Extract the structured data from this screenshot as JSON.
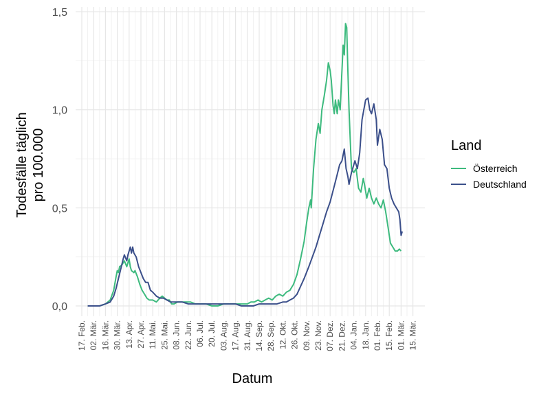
{
  "chart_data": {
    "type": "line",
    "xlabel": "Datum",
    "ylabel_lines": [
      "Todesfälle täglich",
      "pro 100.000"
    ],
    "y_ticks": [
      {
        "value": 0.0,
        "label": "0,0"
      },
      {
        "value": 0.5,
        "label": "0,5"
      },
      {
        "value": 1.0,
        "label": "1,0"
      },
      {
        "value": 1.5,
        "label": "1,5"
      }
    ],
    "x_ticks": [
      "17. Feb.",
      "02. Mär.",
      "16. Mär.",
      "30. Mär.",
      "13. Apr.",
      "27. Apr.",
      "11. Mai.",
      "25. Mai.",
      "08. Jun.",
      "22. Jun.",
      "06. Jul.",
      "20. Jul.",
      "03. Aug.",
      "17. Aug.",
      "31. Aug.",
      "14. Sep.",
      "28. Sep.",
      "12. Okt.",
      "26. Okt.",
      "09. Nov.",
      "23. Nov.",
      "07. Dez.",
      "21. Dez.",
      "04. Jan.",
      "18. Jan.",
      "01. Feb.",
      "15. Feb.",
      "01. Mär.",
      "15. Mär."
    ],
    "x_range_weeks": [
      0,
      28
    ],
    "ylim": [
      -0.05,
      1.5
    ],
    "grid": true,
    "legend": {
      "title": "Land",
      "position": "right"
    },
    "series": [
      {
        "name": "Österreich",
        "color": "#3dba7e",
        "points": [
          [
            0.5,
            0
          ],
          [
            1.5,
            0
          ],
          [
            2.0,
            0.01
          ],
          [
            2.4,
            0.03
          ],
          [
            2.7,
            0.08
          ],
          [
            2.9,
            0.15
          ],
          [
            3.0,
            0.18
          ],
          [
            3.1,
            0.17
          ],
          [
            3.2,
            0.2
          ],
          [
            3.4,
            0.21
          ],
          [
            3.6,
            0.23
          ],
          [
            3.8,
            0.2
          ],
          [
            3.9,
            0.22
          ],
          [
            4.0,
            0.24
          ],
          [
            4.1,
            0.2
          ],
          [
            4.2,
            0.18
          ],
          [
            4.4,
            0.17
          ],
          [
            4.5,
            0.18
          ],
          [
            4.7,
            0.15
          ],
          [
            4.9,
            0.11
          ],
          [
            5.1,
            0.08
          ],
          [
            5.3,
            0.06
          ],
          [
            5.5,
            0.04
          ],
          [
            5.7,
            0.03
          ],
          [
            6.0,
            0.03
          ],
          [
            6.3,
            0.02
          ],
          [
            6.6,
            0.04
          ],
          [
            6.8,
            0.05
          ],
          [
            7.0,
            0.04
          ],
          [
            7.2,
            0.03
          ],
          [
            7.4,
            0.03
          ],
          [
            7.6,
            0.01
          ],
          [
            7.8,
            0.01
          ],
          [
            8.1,
            0.02
          ],
          [
            8.4,
            0.02
          ],
          [
            8.8,
            0.02
          ],
          [
            9.2,
            0.02
          ],
          [
            9.6,
            0.01
          ],
          [
            10.0,
            0.01
          ],
          [
            10.5,
            0.01
          ],
          [
            11.0,
            0
          ],
          [
            11.5,
            0
          ],
          [
            12.0,
            0.01
          ],
          [
            12.5,
            0.01
          ],
          [
            13.0,
            0.01
          ],
          [
            13.5,
            0.01
          ],
          [
            14.0,
            0.01
          ],
          [
            14.3,
            0.02
          ],
          [
            14.6,
            0.02
          ],
          [
            14.9,
            0.03
          ],
          [
            15.2,
            0.02
          ],
          [
            15.5,
            0.03
          ],
          [
            15.8,
            0.04
          ],
          [
            16.1,
            0.03
          ],
          [
            16.4,
            0.05
          ],
          [
            16.7,
            0.06
          ],
          [
            17.0,
            0.05
          ],
          [
            17.3,
            0.07
          ],
          [
            17.6,
            0.08
          ],
          [
            17.9,
            0.11
          ],
          [
            18.2,
            0.16
          ],
          [
            18.5,
            0.24
          ],
          [
            18.8,
            0.33
          ],
          [
            19.0,
            0.42
          ],
          [
            19.2,
            0.5
          ],
          [
            19.35,
            0.54
          ],
          [
            19.4,
            0.5
          ],
          [
            19.6,
            0.7
          ],
          [
            19.8,
            0.85
          ],
          [
            20.0,
            0.93
          ],
          [
            20.15,
            0.88
          ],
          [
            20.3,
            1.0
          ],
          [
            20.5,
            1.07
          ],
          [
            20.7,
            1.15
          ],
          [
            20.85,
            1.24
          ],
          [
            21.0,
            1.2
          ],
          [
            21.1,
            1.15
          ],
          [
            21.25,
            1.02
          ],
          [
            21.35,
            0.98
          ],
          [
            21.45,
            1.05
          ],
          [
            21.6,
            0.98
          ],
          [
            21.7,
            1.05
          ],
          [
            21.85,
            1.0
          ],
          [
            22.0,
            1.2
          ],
          [
            22.1,
            1.33
          ],
          [
            22.2,
            1.28
          ],
          [
            22.3,
            1.44
          ],
          [
            22.4,
            1.42
          ],
          [
            22.5,
            1.2
          ],
          [
            22.6,
            1.0
          ],
          [
            22.7,
            0.85
          ],
          [
            22.8,
            0.7
          ],
          [
            23.0,
            0.68
          ],
          [
            23.2,
            0.7
          ],
          [
            23.4,
            0.6
          ],
          [
            23.6,
            0.58
          ],
          [
            23.8,
            0.65
          ],
          [
            23.9,
            0.62
          ],
          [
            24.1,
            0.55
          ],
          [
            24.3,
            0.6
          ],
          [
            24.5,
            0.55
          ],
          [
            24.7,
            0.52
          ],
          [
            24.9,
            0.55
          ],
          [
            25.1,
            0.52
          ],
          [
            25.3,
            0.5
          ],
          [
            25.5,
            0.54
          ],
          [
            25.7,
            0.48
          ],
          [
            25.9,
            0.4
          ],
          [
            26.1,
            0.32
          ],
          [
            26.3,
            0.3
          ],
          [
            26.5,
            0.28
          ],
          [
            26.7,
            0.28
          ],
          [
            26.85,
            0.29
          ],
          [
            27.0,
            0.28
          ]
        ]
      },
      {
        "name": "Deutschland",
        "color": "#3b4f8a",
        "points": [
          [
            0.5,
            0
          ],
          [
            1.5,
            0
          ],
          [
            2.0,
            0.01
          ],
          [
            2.4,
            0.02
          ],
          [
            2.7,
            0.05
          ],
          [
            2.9,
            0.09
          ],
          [
            3.1,
            0.14
          ],
          [
            3.3,
            0.19
          ],
          [
            3.5,
            0.24
          ],
          [
            3.6,
            0.26
          ],
          [
            3.8,
            0.23
          ],
          [
            3.9,
            0.26
          ],
          [
            4.0,
            0.28
          ],
          [
            4.1,
            0.3
          ],
          [
            4.2,
            0.27
          ],
          [
            4.3,
            0.3
          ],
          [
            4.4,
            0.27
          ],
          [
            4.6,
            0.25
          ],
          [
            4.8,
            0.2
          ],
          [
            5.0,
            0.17
          ],
          [
            5.2,
            0.14
          ],
          [
            5.4,
            0.12
          ],
          [
            5.6,
            0.12
          ],
          [
            5.8,
            0.08
          ],
          [
            6.0,
            0.07
          ],
          [
            6.3,
            0.05
          ],
          [
            6.6,
            0.04
          ],
          [
            6.9,
            0.04
          ],
          [
            7.2,
            0.03
          ],
          [
            7.5,
            0.02
          ],
          [
            8.0,
            0.02
          ],
          [
            8.5,
            0.02
          ],
          [
            9.0,
            0.01
          ],
          [
            9.5,
            0.01
          ],
          [
            10.0,
            0.01
          ],
          [
            10.5,
            0.01
          ],
          [
            11.0,
            0.01
          ],
          [
            11.5,
            0.01
          ],
          [
            12.0,
            0.01
          ],
          [
            12.5,
            0.01
          ],
          [
            13.0,
            0.01
          ],
          [
            13.5,
            0
          ],
          [
            14.0,
            0
          ],
          [
            14.5,
            0
          ],
          [
            15.0,
            0.01
          ],
          [
            15.5,
            0.01
          ],
          [
            16.0,
            0.01
          ],
          [
            16.5,
            0.01
          ],
          [
            17.0,
            0.02
          ],
          [
            17.3,
            0.02
          ],
          [
            17.6,
            0.03
          ],
          [
            17.9,
            0.04
          ],
          [
            18.2,
            0.06
          ],
          [
            18.5,
            0.1
          ],
          [
            18.8,
            0.14
          ],
          [
            19.0,
            0.17
          ],
          [
            19.2,
            0.2
          ],
          [
            19.5,
            0.25
          ],
          [
            19.8,
            0.3
          ],
          [
            20.1,
            0.36
          ],
          [
            20.4,
            0.42
          ],
          [
            20.7,
            0.48
          ],
          [
            21.0,
            0.53
          ],
          [
            21.3,
            0.6
          ],
          [
            21.6,
            0.67
          ],
          [
            21.8,
            0.72
          ],
          [
            22.0,
            0.74
          ],
          [
            22.2,
            0.8
          ],
          [
            22.35,
            0.7
          ],
          [
            22.5,
            0.66
          ],
          [
            22.6,
            0.62
          ],
          [
            22.8,
            0.68
          ],
          [
            23.0,
            0.72
          ],
          [
            23.1,
            0.74
          ],
          [
            23.3,
            0.7
          ],
          [
            23.5,
            0.78
          ],
          [
            23.7,
            0.95
          ],
          [
            23.85,
            1.0
          ],
          [
            24.0,
            1.05
          ],
          [
            24.2,
            1.06
          ],
          [
            24.35,
            1.0
          ],
          [
            24.5,
            0.98
          ],
          [
            24.7,
            1.03
          ],
          [
            24.9,
            0.95
          ],
          [
            25.0,
            0.82
          ],
          [
            25.2,
            0.9
          ],
          [
            25.4,
            0.85
          ],
          [
            25.6,
            0.72
          ],
          [
            25.8,
            0.7
          ],
          [
            26.0,
            0.6
          ],
          [
            26.2,
            0.55
          ],
          [
            26.4,
            0.52
          ],
          [
            26.6,
            0.5
          ],
          [
            26.8,
            0.48
          ],
          [
            26.9,
            0.44
          ],
          [
            27.0,
            0.36
          ],
          [
            27.1,
            0.38
          ]
        ]
      }
    ]
  }
}
